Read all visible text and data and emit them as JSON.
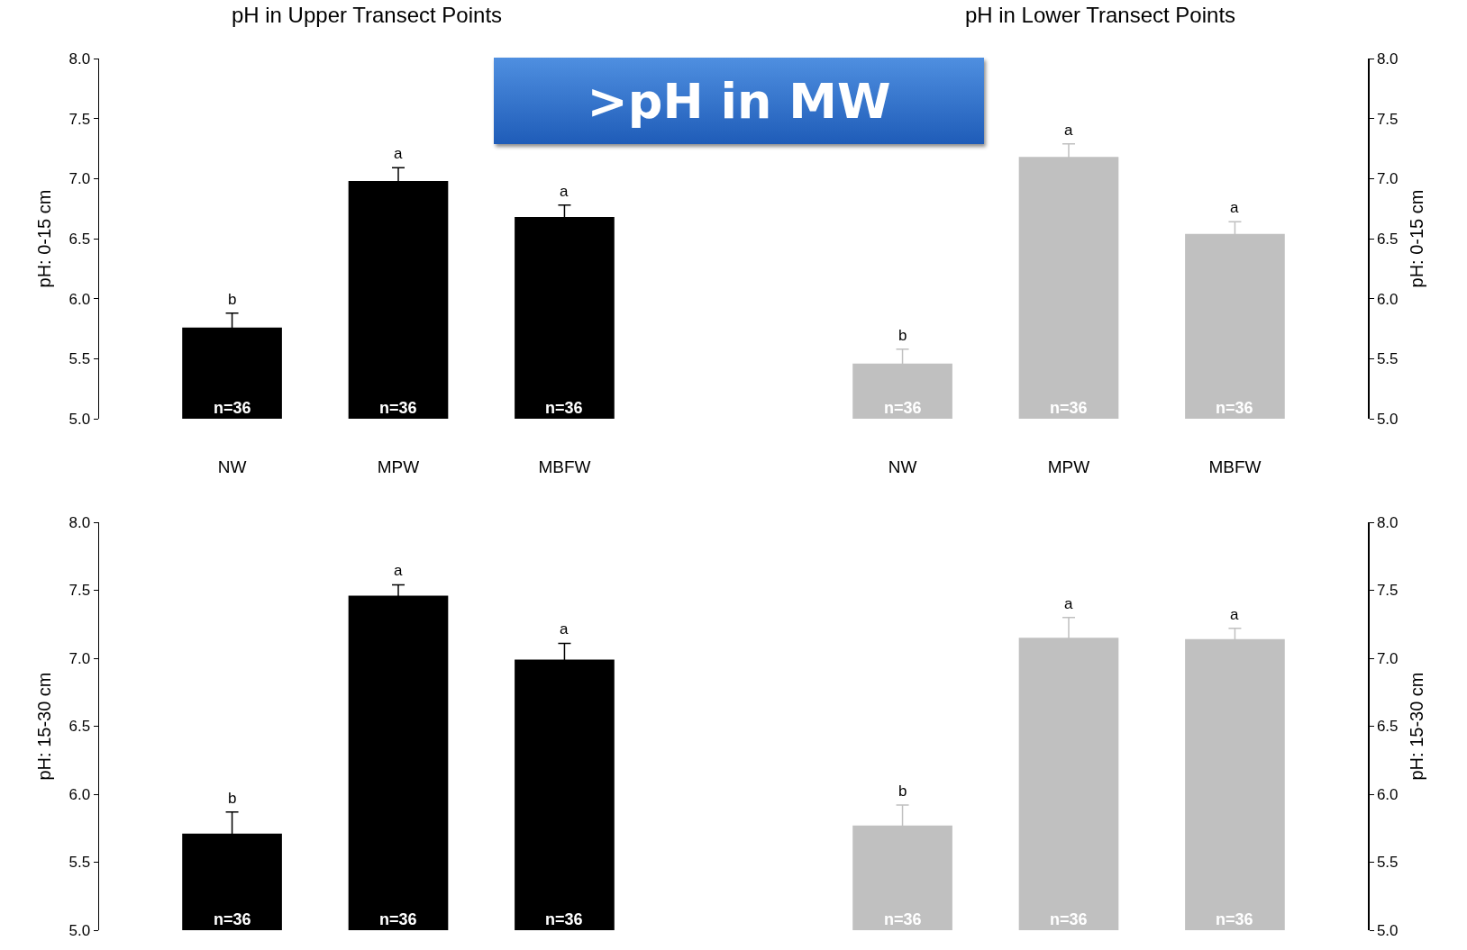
{
  "chart_data": [
    {
      "type": "bar",
      "title": "pH in Upper Transect Points",
      "ylabel": "pH: 0-15 cm",
      "categories": [
        "NW",
        "MPW",
        "MBFW"
      ],
      "series": [
        {
          "color": "#000000",
          "values": [
            5.76,
            6.98,
            6.68
          ],
          "errors": [
            0.12,
            0.11,
            0.1
          ]
        }
      ],
      "ylim": [
        5.0,
        8.0
      ],
      "yticks": [
        {
          "value": 5.0,
          "label": "5.0"
        },
        {
          "value": 5.5,
          "label": "5.5"
        },
        {
          "value": 6.0,
          "label": "6.0"
        },
        {
          "value": 6.5,
          "label": "6.5"
        },
        {
          "value": 7.0,
          "label": "7.0"
        },
        {
          "value": 7.5,
          "label": "7.5"
        },
        {
          "value": 8.0,
          "label": "8.0"
        }
      ],
      "grid": false,
      "legend": false,
      "annotations": [
        "b",
        "a",
        "a",
        "n=36",
        "n=36",
        "n=36"
      ]
    },
    {
      "type": "bar",
      "title": "pH in Lower Transect Points",
      "ylabel": "pH: 0-15 cm",
      "categories": [
        "NW",
        "MPW",
        "MBFW"
      ],
      "series": [
        {
          "color": "#c0c0c0",
          "values": [
            5.46,
            7.18,
            6.54
          ],
          "errors": [
            0.12,
            0.11,
            0.1
          ]
        }
      ],
      "ylim": [
        5.0,
        8.0
      ],
      "yticks": [
        {
          "value": 5.0,
          "label": "5.0"
        },
        {
          "value": 5.5,
          "label": "5.5"
        },
        {
          "value": 6.0,
          "label": "6.0"
        },
        {
          "value": 6.5,
          "label": "6.5"
        },
        {
          "value": 7.0,
          "label": "7.0"
        },
        {
          "value": 7.5,
          "label": "7.5"
        },
        {
          "value": 8.0,
          "label": "8.0"
        }
      ],
      "grid": false,
      "legend": false,
      "annotations": [
        "b",
        "a",
        "a",
        "n=36",
        "n=36",
        "n=36"
      ]
    },
    {
      "type": "bar",
      "ylabel": "pH: 15-30 cm",
      "categories": [
        null,
        null,
        null
      ],
      "tick_labels": "y",
      "series": [
        {
          "color": "#000000",
          "values": [
            5.71,
            7.46,
            6.99
          ],
          "errors": [
            0.16,
            0.08,
            0.12
          ]
        }
      ],
      "ylim": [
        5.0,
        8.0
      ],
      "yticks": [
        {
          "value": 5.0,
          "label": "5.0"
        },
        {
          "value": 5.5,
          "label": "5.5"
        },
        {
          "value": 6.0,
          "label": "6.0"
        },
        {
          "value": 6.5,
          "label": "6.5"
        },
        {
          "value": 7.0,
          "label": "7.0"
        },
        {
          "value": 7.5,
          "label": "7.5"
        },
        {
          "value": 8.0,
          "label": "8.0"
        }
      ],
      "grid": false,
      "legend": false,
      "annotations": [
        "b",
        "a",
        "a",
        "n=36",
        "n=36",
        "n=36"
      ]
    },
    {
      "type": "bar",
      "ylabel": "pH: 15-30 cm",
      "categories": [
        null,
        null,
        null
      ],
      "tick_labels": "y",
      "series": [
        {
          "color": "#c0c0c0",
          "values": [
            5.77,
            7.15,
            7.14
          ],
          "errors": [
            0.15,
            0.15,
            0.08
          ]
        }
      ],
      "ylim": [
        5.0,
        8.0
      ],
      "yticks": [
        {
          "value": 5.0,
          "label": "5.0"
        },
        {
          "value": 5.5,
          "label": "5.5"
        },
        {
          "value": 6.0,
          "label": "6.0"
        },
        {
          "value": 6.5,
          "label": "6.5"
        },
        {
          "value": 7.0,
          "label": "7.0"
        },
        {
          "value": 7.5,
          "label": "7.5"
        },
        {
          "value": 8.0,
          "label": "8.0"
        }
      ],
      "grid": false,
      "legend": false,
      "annotations": [
        "b",
        "a",
        "a",
        "n=36",
        "n=36",
        "n=36"
      ]
    },
    {
      "type": "other",
      "annotations": [
        ">pH in MW"
      ]
    }
  ]
}
